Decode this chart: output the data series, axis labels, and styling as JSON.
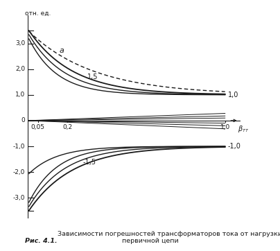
{
  "ylabel": "отн. ед.",
  "xlabel": "β_тт",
  "ylim": [
    -3.8,
    4.1
  ],
  "xlim": [
    0.0,
    1.08
  ],
  "background_color": "#ffffff",
  "line_color": "#1a1a1a",
  "caption_bold": "Рис. 4.1.",
  "caption_normal": " Зависимости погрешностей трансформаторов тока от нагрузки первичной цепи"
}
